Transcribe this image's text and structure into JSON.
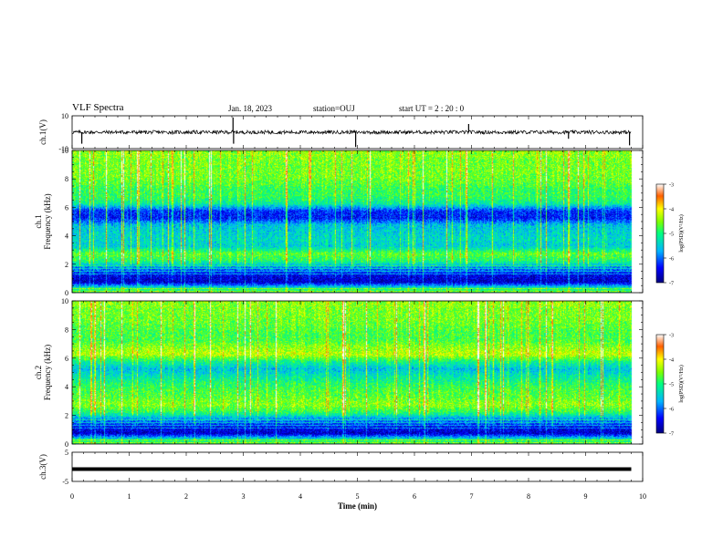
{
  "header": {
    "title": "VLF Spectra",
    "date": "Jan. 18, 2023",
    "station": "station=OUJ",
    "start": "start UT =  2 : 20 : 0"
  },
  "chart_data": [
    {
      "type": "line",
      "name": "ch1_waveform",
      "ylabel": "ch.1(V)",
      "ylim": [
        -10,
        10
      ],
      "ytick_labels": [
        "10",
        "-10"
      ],
      "xlim": [
        0,
        9.8
      ],
      "baseline": 0,
      "spikes": [
        {
          "t": 0.17,
          "v": -7
        },
        {
          "t": 2.82,
          "v": 9
        },
        {
          "t": 2.83,
          "v": -7
        },
        {
          "t": 4.97,
          "v": -9
        },
        {
          "t": 6.95,
          "v": 5
        },
        {
          "t": 8.7,
          "v": -4
        },
        {
          "t": 9.77,
          "v": -8
        }
      ]
    },
    {
      "type": "heatmap",
      "name": "ch1_spectrogram",
      "ylabel": "ch.1 Frequency (kHz)",
      "ylim": [
        0,
        10
      ],
      "ytick_labels": [
        "0",
        "2",
        "4",
        "6",
        "8",
        "10"
      ],
      "xlim": [
        0,
        9.8
      ],
      "profile_freq_khz": [
        0.25,
        0.75,
        1.25,
        1.75,
        2.25,
        2.75,
        3.25,
        3.75,
        4.25,
        4.75,
        5.25,
        5.75,
        6.25,
        6.75,
        7.25,
        7.75,
        8.25,
        8.75,
        9.25,
        9.75
      ],
      "profile_log_psd": [
        -5.0,
        -6.7,
        -6.5,
        -5.9,
        -5.0,
        -4.7,
        -5.5,
        -5.4,
        -5.5,
        -5.6,
        -6.4,
        -6.3,
        -5.2,
        -4.9,
        -4.9,
        -4.7,
        -4.6,
        -4.6,
        -4.6,
        -4.5
      ],
      "colorbar": {
        "label": "log(PSD)(V²/Hz)",
        "range": [
          -7,
          -3
        ],
        "tick_labels": [
          "-3",
          "-4",
          "-5",
          "-6",
          "-7"
        ]
      }
    },
    {
      "type": "heatmap",
      "name": "ch2_spectrogram",
      "ylabel": "ch.2 Frequency (kHz)",
      "ylim": [
        0,
        10
      ],
      "ytick_labels": [
        "0",
        "2",
        "4",
        "6",
        "8",
        "10"
      ],
      "xlim": [
        0,
        9.8
      ],
      "profile_freq_khz": [
        0.25,
        0.75,
        1.25,
        1.75,
        2.25,
        2.75,
        3.25,
        3.75,
        4.25,
        4.75,
        5.25,
        5.75,
        6.25,
        6.75,
        7.25,
        7.75,
        8.25,
        8.75,
        9.25,
        9.75
      ],
      "profile_log_psd": [
        -5.0,
        -6.7,
        -6.4,
        -5.8,
        -4.9,
        -4.5,
        -4.7,
        -4.8,
        -5.0,
        -5.3,
        -5.6,
        -5.1,
        -4.3,
        -4.5,
        -4.8,
        -4.8,
        -4.7,
        -4.6,
        -4.6,
        -4.5
      ],
      "colorbar": {
        "label": "log(PSD)(V²/Hz)",
        "range": [
          -7,
          -3
        ],
        "tick_labels": [
          "-3",
          "-4",
          "-5",
          "-6",
          "-7"
        ]
      }
    },
    {
      "type": "line",
      "name": "ch3_waveform",
      "ylabel": "ch.3(V)",
      "ylim": [
        -5,
        5
      ],
      "ytick_labels": [
        "5",
        "-5"
      ],
      "xlim": [
        0,
        9.8
      ],
      "baseline": -0.8
    }
  ],
  "x_axis": {
    "label": "Time (min)",
    "range": [
      0,
      10
    ],
    "tick_labels": [
      "0",
      "1",
      "2",
      "3",
      "4",
      "5",
      "6",
      "7",
      "8",
      "9",
      "10"
    ]
  }
}
